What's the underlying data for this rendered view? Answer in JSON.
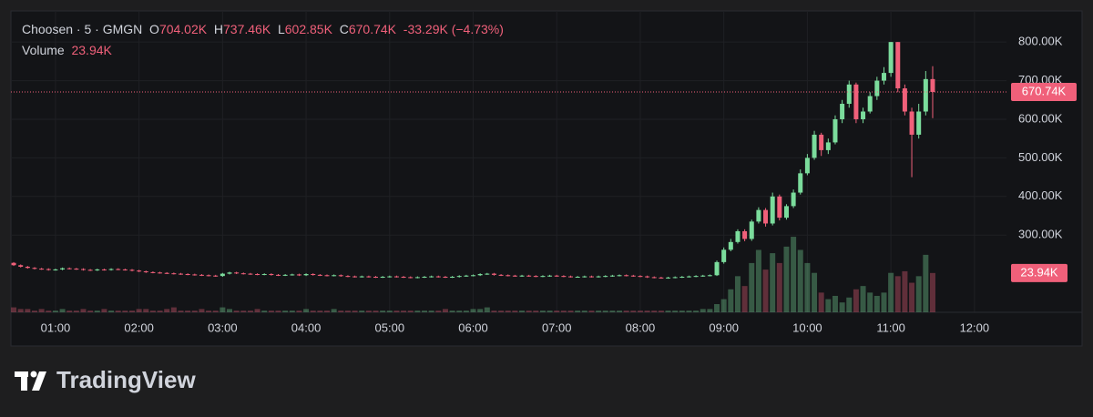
{
  "header": {
    "symbol": "Choosen · 5 · GMGN",
    "o_label": "O",
    "open": "704.02K",
    "h_label": "H",
    "high": "737.46K",
    "l_label": "L",
    "low": "602.85K",
    "c_label": "C",
    "close": "670.74K",
    "change": "-33.29K (−4.73%)",
    "volume_label": "Volume",
    "volume": "23.94K"
  },
  "branding": "TradingView",
  "chart_data": {
    "type": "candlestick",
    "up_color": "#7bdc9c",
    "down_color": "#f0607a",
    "grid": true,
    "x": [
      "00:30",
      "00:35",
      "00:40",
      "00:45",
      "00:50",
      "00:55",
      "01:00",
      "01:05",
      "01:10",
      "01:15",
      "01:20",
      "01:25",
      "01:30",
      "01:35",
      "01:40",
      "01:45",
      "01:50",
      "01:55",
      "02:00",
      "02:05",
      "02:10",
      "02:15",
      "02:20",
      "02:25",
      "02:30",
      "02:35",
      "02:40",
      "02:45",
      "02:50",
      "02:55",
      "03:00",
      "03:05",
      "03:10",
      "03:15",
      "03:20",
      "03:25",
      "03:30",
      "03:35",
      "03:40",
      "03:45",
      "03:50",
      "03:55",
      "04:00",
      "04:05",
      "04:10",
      "04:15",
      "04:20",
      "04:25",
      "04:30",
      "04:35",
      "04:40",
      "04:45",
      "04:50",
      "04:55",
      "05:00",
      "05:05",
      "05:10",
      "05:15",
      "05:20",
      "05:25",
      "05:30",
      "05:35",
      "05:40",
      "05:45",
      "05:50",
      "05:55",
      "06:00",
      "06:05",
      "06:10",
      "06:15",
      "06:20",
      "06:25",
      "06:30",
      "06:35",
      "06:40",
      "06:45",
      "06:50",
      "06:55",
      "07:00",
      "07:05",
      "07:10",
      "07:15",
      "07:20",
      "07:25",
      "07:30",
      "07:35",
      "07:40",
      "07:45",
      "07:50",
      "07:55",
      "08:00",
      "08:05",
      "08:10",
      "08:15",
      "08:20",
      "08:25",
      "08:30",
      "08:35",
      "08:40",
      "08:45",
      "08:50",
      "08:55",
      "09:00",
      "09:05",
      "09:10",
      "09:15",
      "09:20",
      "09:25",
      "09:30",
      "09:35",
      "09:40",
      "09:45",
      "09:50",
      "09:55",
      "10:00",
      "10:05",
      "10:10",
      "10:15",
      "10:20",
      "10:25",
      "10:30",
      "10:35",
      "10:40",
      "10:45",
      "10:50",
      "10:55",
      "11:00",
      "11:05",
      "11:10",
      "11:15",
      "11:20",
      "11:25",
      "11:30"
    ],
    "open": [
      228,
      222,
      218,
      215,
      213,
      212,
      210,
      211,
      214,
      213,
      212,
      210,
      209,
      211,
      210,
      212,
      211,
      210,
      208,
      206,
      204,
      203,
      202,
      201,
      200,
      199,
      198,
      197,
      196,
      195,
      194,
      200,
      203,
      201,
      200,
      199,
      198,
      199,
      197,
      196,
      197,
      198,
      196,
      199,
      197,
      196,
      195,
      196,
      194,
      193,
      192,
      193,
      192,
      191,
      192,
      193,
      192,
      191,
      190,
      191,
      192,
      193,
      192,
      191,
      192,
      194,
      195,
      196,
      199,
      200,
      197,
      196,
      195,
      194,
      195,
      194,
      193,
      194,
      195,
      194,
      193,
      192,
      192,
      193,
      192,
      193,
      194,
      195,
      196,
      195,
      194,
      193,
      191,
      190,
      189,
      190,
      191,
      192,
      193,
      194,
      195,
      196,
      230,
      262,
      282,
      310,
      290,
      335,
      365,
      330,
      400,
      345,
      375,
      410,
      460,
      500,
      560,
      520,
      540,
      600,
      640,
      690,
      600,
      620,
      660,
      700,
      720,
      800,
      680,
      620,
      560,
      620,
      704.02
    ],
    "high": [
      230,
      224,
      220,
      217,
      215,
      214,
      213,
      216,
      216,
      215,
      214,
      212,
      213,
      213,
      214,
      214,
      213,
      212,
      210,
      208,
      206,
      205,
      204,
      203,
      202,
      201,
      200,
      199,
      198,
      197,
      202,
      205,
      205,
      203,
      202,
      201,
      201,
      201,
      199,
      199,
      200,
      200,
      201,
      201,
      199,
      198,
      198,
      198,
      196,
      195,
      195,
      195,
      194,
      194,
      195,
      195,
      194,
      193,
      193,
      194,
      195,
      195,
      194,
      194,
      196,
      197,
      198,
      201,
      202,
      202,
      199,
      198,
      197,
      197,
      197,
      196,
      196,
      197,
      197,
      196,
      195,
      194,
      195,
      195,
      195,
      196,
      197,
      198,
      198,
      197,
      196,
      195,
      193,
      192,
      192,
      193,
      194,
      195,
      196,
      197,
      198,
      234,
      268,
      290,
      315,
      315,
      340,
      372,
      370,
      410,
      405,
      380,
      418,
      470,
      510,
      570,
      565,
      550,
      610,
      650,
      700,
      695,
      630,
      670,
      710,
      735,
      800,
      800,
      690,
      630,
      640,
      725,
      737.46
    ],
    "low": [
      220,
      216,
      213,
      211,
      210,
      208,
      208,
      209,
      211,
      210,
      208,
      207,
      207,
      208,
      208,
      209,
      208,
      206,
      204,
      202,
      201,
      200,
      199,
      198,
      197,
      196,
      195,
      194,
      193,
      192,
      192,
      198,
      199,
      198,
      197,
      196,
      196,
      195,
      194,
      194,
      195,
      194,
      194,
      195,
      194,
      193,
      193,
      192,
      191,
      190,
      190,
      190,
      189,
      189,
      190,
      190,
      189,
      188,
      188,
      189,
      190,
      190,
      189,
      189,
      190,
      192,
      193,
      194,
      197,
      195,
      194,
      193,
      192,
      192,
      192,
      191,
      191,
      192,
      192,
      191,
      190,
      190,
      190,
      190,
      190,
      191,
      192,
      193,
      193,
      192,
      191,
      189,
      188,
      187,
      187,
      188,
      189,
      190,
      191,
      192,
      193,
      194,
      226,
      258,
      278,
      284,
      285,
      330,
      322,
      325,
      338,
      340,
      370,
      405,
      455,
      495,
      505,
      510,
      535,
      590,
      630,
      590,
      590,
      615,
      650,
      690,
      710,
      670,
      610,
      450,
      550,
      610,
      602.85
    ],
    "close": [
      222,
      218,
      215,
      213,
      212,
      210,
      211,
      214,
      213,
      212,
      210,
      209,
      211,
      210,
      212,
      211,
      210,
      208,
      206,
      204,
      203,
      202,
      201,
      200,
      199,
      198,
      197,
      196,
      195,
      194,
      200,
      203,
      201,
      200,
      199,
      198,
      199,
      197,
      196,
      197,
      198,
      196,
      199,
      197,
      196,
      195,
      196,
      194,
      193,
      192,
      193,
      192,
      191,
      192,
      193,
      192,
      191,
      190,
      191,
      192,
      193,
      192,
      191,
      192,
      194,
      195,
      196,
      199,
      200,
      197,
      196,
      195,
      194,
      195,
      194,
      193,
      194,
      195,
      194,
      193,
      192,
      192,
      193,
      192,
      193,
      194,
      195,
      196,
      195,
      194,
      193,
      191,
      190,
      189,
      190,
      191,
      192,
      193,
      194,
      195,
      196,
      230,
      262,
      282,
      310,
      290,
      335,
      365,
      330,
      400,
      345,
      375,
      410,
      460,
      500,
      560,
      520,
      540,
      600,
      640,
      690,
      600,
      620,
      660,
      700,
      720,
      800,
      680,
      620,
      560,
      620,
      704.02,
      670.74
    ],
    "volume": [
      3,
      2,
      2,
      1,
      2,
      1,
      1,
      2,
      1,
      1,
      2,
      1,
      1,
      2,
      1,
      1,
      1,
      1,
      2,
      2,
      1,
      1,
      2,
      3,
      1,
      1,
      1,
      2,
      1,
      1,
      3,
      2,
      1,
      1,
      1,
      2,
      1,
      1,
      1,
      1,
      1,
      1,
      2,
      1,
      1,
      1,
      2,
      1,
      1,
      1,
      1,
      1,
      1,
      1,
      1,
      1,
      1,
      1,
      1,
      1,
      1,
      1,
      2,
      1,
      1,
      1,
      2,
      2,
      3,
      1,
      1,
      1,
      1,
      1,
      1,
      1,
      1,
      1,
      1,
      1,
      1,
      1,
      1,
      1,
      1,
      1,
      1,
      1,
      1,
      1,
      1,
      1,
      1,
      1,
      1,
      1,
      1,
      1,
      1,
      2,
      2,
      5,
      8,
      14,
      22,
      16,
      30,
      38,
      26,
      36,
      30,
      40,
      46,
      38,
      30,
      24,
      12,
      8,
      10,
      6,
      9,
      14,
      16,
      12,
      10,
      12,
      24,
      22,
      25,
      18,
      22,
      35,
      23.94
    ],
    "xlim": [
      "00:28",
      "12:23"
    ],
    "xticks": [
      "01:00",
      "02:00",
      "03:00",
      "04:00",
      "05:00",
      "06:00",
      "07:00",
      "08:00",
      "09:00",
      "10:00",
      "11:00",
      "12:00"
    ],
    "ylim": [
      100,
      857
    ],
    "yticks": [
      {
        "value": 300,
        "label": "300.00K"
      },
      {
        "value": 400,
        "label": "400.00K"
      },
      {
        "value": 500,
        "label": "500.00K"
      },
      {
        "value": 600,
        "label": "600.00K"
      },
      {
        "value": 700,
        "label": "700.00K"
      },
      {
        "value": 800,
        "label": "800.00K"
      }
    ],
    "volume_lim": [
      0,
      61
    ]
  }
}
